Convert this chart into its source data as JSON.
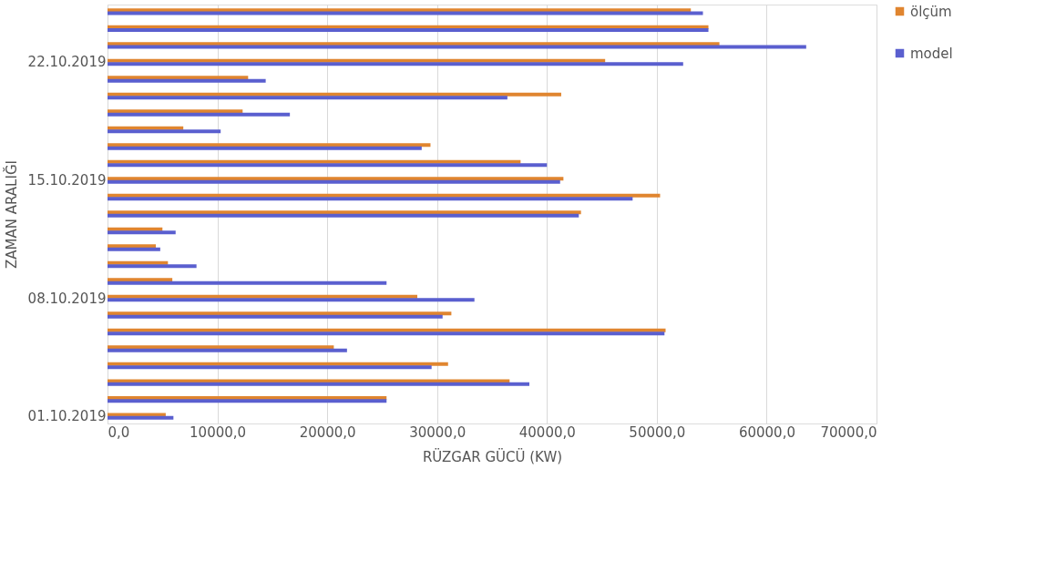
{
  "chart_data": {
    "type": "bar",
    "orientation": "horizontal",
    "xlabel": "RÜZGAR GÜCÜ (KW)",
    "ylabel": "ZAMAN ARALIĞI",
    "categories": [
      null,
      null,
      null,
      "22.10.2019",
      null,
      null,
      null,
      null,
      null,
      null,
      "15.10.2019",
      null,
      null,
      null,
      null,
      null,
      null,
      "08.10.2019",
      null,
      null,
      null,
      null,
      null,
      null,
      "01.10.2019"
    ],
    "series": [
      {
        "name": "ölçüm",
        "color": "#e0852f",
        "values": [
          53100,
          54700,
          55700,
          45300,
          12800,
          41300,
          12300,
          6900,
          29400,
          37600,
          41500,
          50300,
          43100,
          5000,
          4400,
          5500,
          5900,
          28200,
          31300,
          50800,
          20600,
          31000,
          36600,
          25400,
          5300
        ]
      },
      {
        "name": "model",
        "color": "#5a5fcf",
        "values": [
          54200,
          54700,
          63600,
          52400,
          14400,
          36400,
          16600,
          10300,
          28600,
          40000,
          41200,
          47800,
          42900,
          6200,
          4800,
          8100,
          25400,
          33400,
          30500,
          50700,
          21800,
          29500,
          38400,
          25400,
          6000
        ]
      }
    ],
    "xlim": [
      0,
      70000
    ],
    "xticks": [
      {
        "value": 0,
        "label": "0,0"
      },
      {
        "value": 10000,
        "label": "10000,0"
      },
      {
        "value": 20000,
        "label": "20000,0"
      },
      {
        "value": 30000,
        "label": "30000,0"
      },
      {
        "value": 40000,
        "label": "40000,0"
      },
      {
        "value": 50000,
        "label": "50000,0"
      },
      {
        "value": 60000,
        "label": "60000,0"
      },
      {
        "value": 70000,
        "label": "70000,0"
      }
    ],
    "grid": "x",
    "legend": "right"
  }
}
